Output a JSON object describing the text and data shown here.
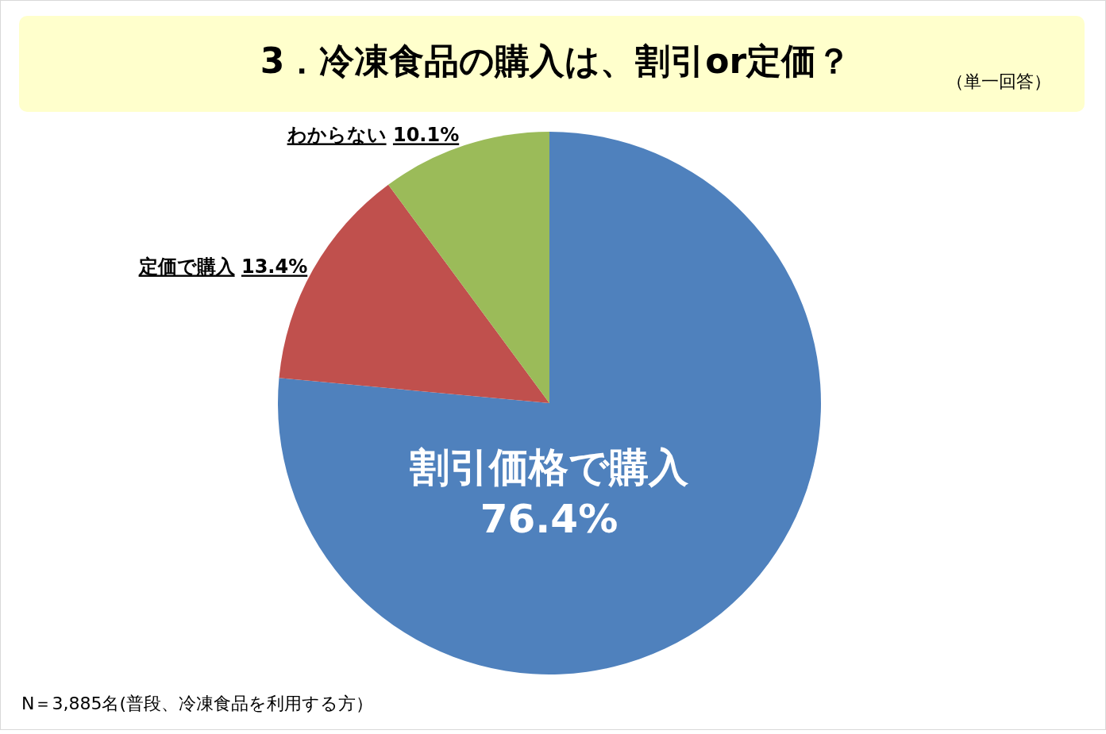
{
  "chart_data": {
    "type": "pie",
    "title": "3．冷凍食品の購入は、割引or定価？",
    "subtitle": "（単一回答）",
    "categories": [
      "割引価格で購入",
      "定価で購入",
      "わからない"
    ],
    "values": [
      76.4,
      13.4,
      10.1
    ],
    "value_labels": [
      "76.4%",
      "13.4%",
      "10.1%"
    ],
    "colors": [
      "#4f81bd",
      "#c0504d",
      "#9bbb59"
    ],
    "annotations": [
      "N＝3,885名(普段、冷凍食品を利用する方）"
    ],
    "legend": false
  }
}
